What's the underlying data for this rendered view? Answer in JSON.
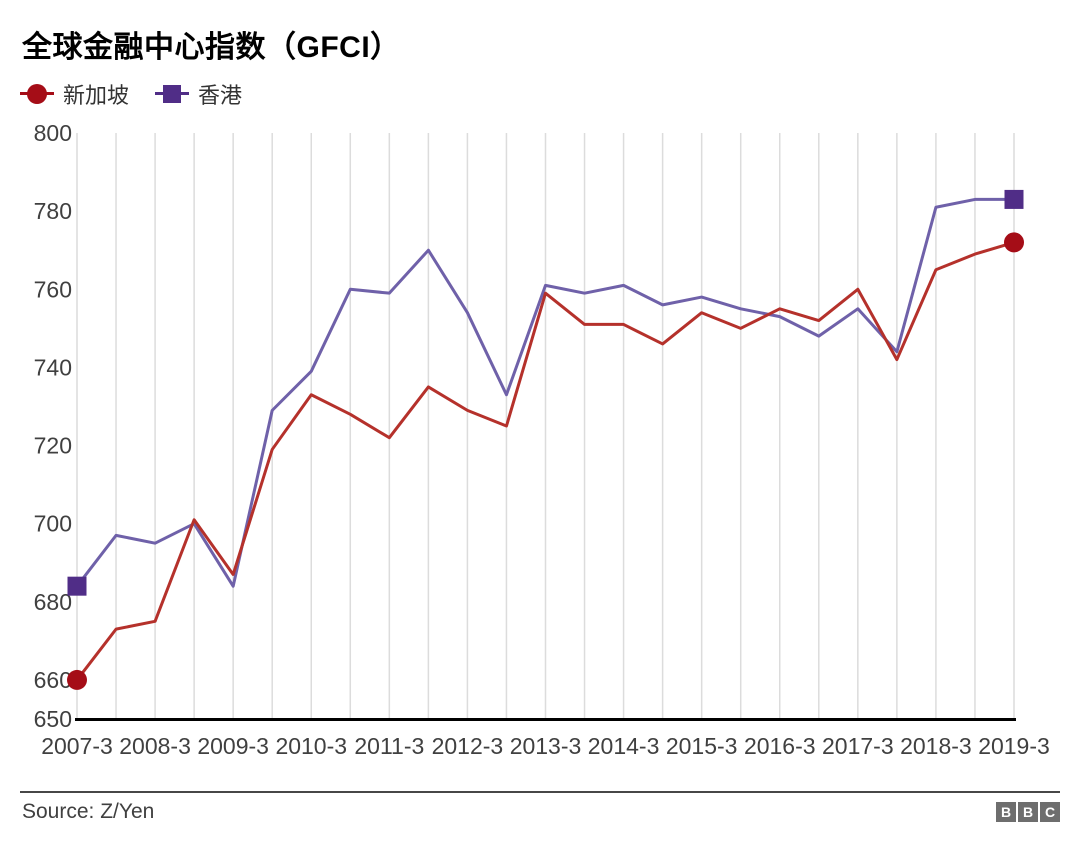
{
  "title": "全球金融中心指数（GFCI）",
  "legend": {
    "items": [
      {
        "label": "新加坡",
        "marker": "circle",
        "marker_color": "#a50d17",
        "line_color": "#b5312b"
      },
      {
        "label": "香港",
        "marker": "square",
        "marker_color": "#502d87",
        "line_color": "#6f61a9"
      }
    ]
  },
  "chart_data": {
    "type": "line",
    "title": "全球金融中心指数（GFCI）",
    "x_tick_labels": [
      "2007-3",
      "2008-3",
      "2009-3",
      "2010-3",
      "2011-3",
      "2012-3",
      "2013-3",
      "2014-3",
      "2015-3",
      "2016-3",
      "2017-3",
      "2018-3",
      "2019-3"
    ],
    "points_per_year": 2,
    "x_note": "25 semi-annual data points from 2007-3 to 2019-3; vertical gridline at every point",
    "series": [
      {
        "id": "singapore",
        "name": "新加坡",
        "marker": "circle",
        "marker_color": "#a50d17",
        "line_color": "#b5312b",
        "values": [
          660,
          673,
          675,
          701,
          687,
          719,
          733,
          728,
          722,
          735,
          729,
          725,
          759,
          751,
          751,
          746,
          754,
          750,
          755,
          752,
          760,
          742,
          765,
          769,
          772
        ]
      },
      {
        "id": "hongkong",
        "name": "香港",
        "marker": "square",
        "marker_color": "#502d87",
        "line_color": "#6f61a9",
        "values": [
          684,
          697,
          695,
          700,
          684,
          729,
          739,
          760,
          759,
          770,
          754,
          733,
          761,
          759,
          761,
          756,
          758,
          755,
          753,
          748,
          755,
          744,
          781,
          783,
          783
        ]
      }
    ],
    "ylim": [
      650,
      800
    ],
    "y_ticks": [
      800,
      780,
      760,
      740,
      720,
      700,
      680,
      660,
      650
    ],
    "grid": "vertical-only",
    "legend_position": "top-left",
    "colors": {
      "gridline": "#dcdcdc",
      "axis": "#000000",
      "tick_text": "#404040"
    }
  },
  "footer": {
    "source": "Source: Z/Yen",
    "logo_blocks": [
      "B",
      "B",
      "C"
    ]
  }
}
